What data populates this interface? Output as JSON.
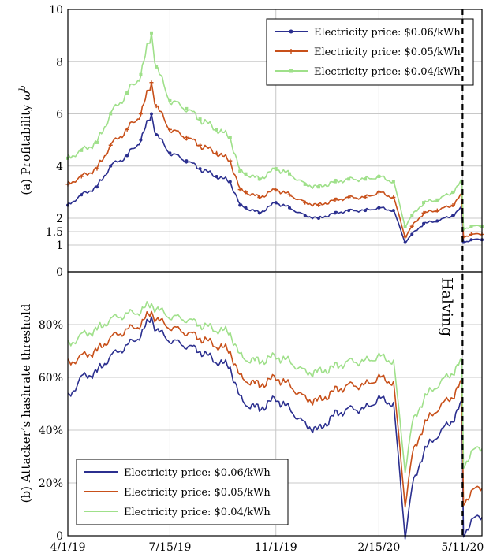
{
  "colors": {
    "s006": "#2b2f8f",
    "s005": "#c8501a",
    "s004": "#9fe08a",
    "halving": "#000000",
    "grid": "#c8c8c8"
  },
  "halving_label": "Halving",
  "halving_date": "5/11/20",
  "chart_data": [
    {
      "type": "line",
      "title": "",
      "xlabel": "",
      "ylabel": "(a) Profitability ω^b",
      "ylabel_text": "(a) Profitability ",
      "ylabel_symbol": "ω",
      "ylabel_sup": "b",
      "x_ticks": [
        "4/1/19",
        "7/15/19",
        "11/1/19",
        "2/15/20",
        "5/11/20"
      ],
      "y_ticks": [
        "0",
        "1",
        "1.5",
        "2",
        "4",
        "6",
        "8",
        "10"
      ],
      "ylim": [
        0,
        10
      ],
      "legend": {
        "position": "top-right"
      },
      "grid": true,
      "series": [
        {
          "name": "Electricity price: $0.06/kWh",
          "color_key": "s006",
          "marker": "circle",
          "x": [
            "4/1/19",
            "4/15/19",
            "5/1/19",
            "5/15/19",
            "6/1/19",
            "6/15/19",
            "6/26/19",
            "7/1/19",
            "7/15/19",
            "8/1/19",
            "8/15/19",
            "9/1/19",
            "9/15/19",
            "9/25/19",
            "10/1/19",
            "10/15/19",
            "11/1/19",
            "11/15/19",
            "12/1/19",
            "12/15/19",
            "1/1/20",
            "1/15/20",
            "2/1/20",
            "2/15/20",
            "3/1/20",
            "3/13/20",
            "3/20/20",
            "4/1/20",
            "4/15/20",
            "5/1/20",
            "5/10/20",
            "5/12/20",
            "5/20/20",
            "5/31/20"
          ],
          "y": [
            2.5,
            2.9,
            3.2,
            4.0,
            4.4,
            5.0,
            6.0,
            5.2,
            4.5,
            4.2,
            3.9,
            3.6,
            3.4,
            2.5,
            2.4,
            2.2,
            2.6,
            2.4,
            2.1,
            2.0,
            2.2,
            2.3,
            2.3,
            2.4,
            2.3,
            1.1,
            1.4,
            1.8,
            1.9,
            2.1,
            2.4,
            1.1,
            1.2,
            1.2
          ]
        },
        {
          "name": "Electricity price: $0.05/kWh",
          "color_key": "s005",
          "marker": "plus",
          "x": [
            "4/1/19",
            "4/15/19",
            "5/1/19",
            "5/15/19",
            "6/1/19",
            "6/15/19",
            "6/26/19",
            "7/1/19",
            "7/15/19",
            "8/1/19",
            "8/15/19",
            "9/1/19",
            "9/15/19",
            "9/25/19",
            "10/1/19",
            "10/15/19",
            "11/1/19",
            "11/15/19",
            "12/1/19",
            "12/15/19",
            "1/1/20",
            "1/15/20",
            "2/1/20",
            "2/15/20",
            "3/1/20",
            "3/13/20",
            "3/20/20",
            "4/1/20",
            "4/15/20",
            "5/1/20",
            "5/10/20",
            "5/12/20",
            "5/20/20",
            "5/31/20"
          ],
          "y": [
            3.3,
            3.6,
            3.9,
            4.8,
            5.4,
            6.0,
            7.2,
            6.3,
            5.4,
            5.1,
            4.8,
            4.5,
            4.2,
            3.1,
            3.0,
            2.8,
            3.1,
            2.9,
            2.6,
            2.5,
            2.7,
            2.8,
            2.8,
            3.0,
            2.8,
            1.3,
            1.7,
            2.2,
            2.3,
            2.5,
            2.9,
            1.3,
            1.4,
            1.4
          ]
        },
        {
          "name": "Electricity price: $0.04/kWh",
          "color_key": "s004",
          "marker": "square",
          "x": [
            "4/1/19",
            "4/15/19",
            "5/1/19",
            "5/15/19",
            "6/1/19",
            "6/15/19",
            "6/26/19",
            "7/1/19",
            "7/15/19",
            "8/1/19",
            "8/15/19",
            "9/1/19",
            "9/15/19",
            "9/25/19",
            "10/1/19",
            "10/15/19",
            "11/1/19",
            "11/15/19",
            "12/1/19",
            "12/15/19",
            "1/1/20",
            "1/15/20",
            "2/1/20",
            "2/15/20",
            "3/1/20",
            "3/13/20",
            "3/20/20",
            "4/1/20",
            "4/15/20",
            "5/1/20",
            "5/10/20",
            "5/12/20",
            "5/20/20",
            "5/31/20"
          ],
          "y": [
            4.3,
            4.6,
            4.9,
            6.0,
            6.8,
            7.5,
            9.1,
            7.8,
            6.5,
            6.2,
            5.8,
            5.4,
            5.1,
            3.8,
            3.7,
            3.5,
            3.9,
            3.7,
            3.3,
            3.2,
            3.4,
            3.5,
            3.5,
            3.6,
            3.4,
            1.7,
            2.1,
            2.6,
            2.7,
            3.0,
            3.4,
            1.6,
            1.7,
            1.7
          ]
        }
      ]
    },
    {
      "type": "line",
      "title": "",
      "xlabel": "",
      "ylabel": "(b) Attacker’s hashrate threshold",
      "x_ticks": [
        "4/1/19",
        "7/15/19",
        "11/1/19",
        "2/15/20",
        "5/11/20"
      ],
      "y_ticks": [
        "0",
        "20%",
        "40%",
        "60%",
        "80%"
      ],
      "ylim": [
        0,
        100
      ],
      "legend": {
        "position": "bottom-left"
      },
      "grid": true,
      "series": [
        {
          "name": "Electricity price: $0.06/kWh",
          "color_key": "s006",
          "x": [
            "4/1/19",
            "4/15/19",
            "5/1/19",
            "5/15/19",
            "6/1/19",
            "6/15/19",
            "6/26/19",
            "7/1/19",
            "7/15/19",
            "8/1/19",
            "8/15/19",
            "9/1/19",
            "9/15/19",
            "9/25/19",
            "10/1/19",
            "10/15/19",
            "11/1/19",
            "11/15/19",
            "12/1/19",
            "12/15/19",
            "1/1/20",
            "1/15/20",
            "2/1/20",
            "2/15/20",
            "3/1/20",
            "3/13/20",
            "3/20/20",
            "4/1/20",
            "4/15/20",
            "5/1/20",
            "5/10/20",
            "5/12/20",
            "5/20/20",
            "5/31/20"
          ],
          "y": [
            52,
            60,
            62,
            68,
            72,
            76,
            83,
            78,
            74,
            72,
            70,
            66,
            64,
            52,
            50,
            48,
            52,
            48,
            42,
            40,
            46,
            48,
            48,
            52,
            50,
            0,
            18,
            32,
            38,
            44,
            50,
            0,
            6,
            7
          ]
        },
        {
          "name": "Electricity price: $0.05/kWh",
          "color_key": "s005",
          "x": [
            "4/1/19",
            "4/15/19",
            "5/1/19",
            "5/15/19",
            "6/1/19",
            "6/15/19",
            "6/26/19",
            "7/1/19",
            "7/15/19",
            "8/1/19",
            "8/15/19",
            "9/1/19",
            "9/15/19",
            "9/25/19",
            "10/1/19",
            "10/15/19",
            "11/1/19",
            "11/15/19",
            "12/1/19",
            "12/15/19",
            "1/1/20",
            "1/15/20",
            "2/1/20",
            "2/15/20",
            "3/1/20",
            "3/13/20",
            "3/20/20",
            "4/1/20",
            "4/15/20",
            "5/1/20",
            "5/10/20",
            "5/12/20",
            "5/20/20",
            "5/31/20"
          ],
          "y": [
            65,
            68,
            70,
            75,
            78,
            80,
            85,
            82,
            79,
            77,
            75,
            72,
            70,
            60,
            59,
            57,
            60,
            57,
            52,
            51,
            55,
            57,
            57,
            60,
            58,
            12,
            30,
            42,
            48,
            53,
            58,
            12,
            17,
            18
          ]
        },
        {
          "name": "Electricity price: $0.04/kWh",
          "color_key": "s004",
          "x": [
            "4/1/19",
            "4/15/19",
            "5/1/19",
            "5/15/19",
            "6/1/19",
            "6/15/19",
            "6/26/19",
            "7/1/19",
            "7/15/19",
            "8/1/19",
            "8/15/19",
            "9/1/19",
            "9/15/19",
            "9/25/19",
            "10/1/19",
            "10/15/19",
            "11/1/19",
            "11/15/19",
            "12/1/19",
            "12/15/19",
            "1/1/20",
            "1/15/20",
            "2/1/20",
            "2/15/20",
            "3/1/20",
            "3/13/20",
            "3/20/20",
            "4/1/20",
            "4/15/20",
            "5/1/20",
            "5/10/20",
            "5/12/20",
            "5/20/20",
            "5/31/20"
          ],
          "y": [
            72,
            76,
            78,
            82,
            84,
            85,
            88,
            86,
            83,
            82,
            80,
            78,
            77,
            68,
            67,
            66,
            68,
            66,
            62,
            62,
            64,
            66,
            66,
            68,
            66,
            25,
            42,
            52,
            57,
            62,
            66,
            26,
            32,
            33
          ]
        }
      ]
    }
  ]
}
